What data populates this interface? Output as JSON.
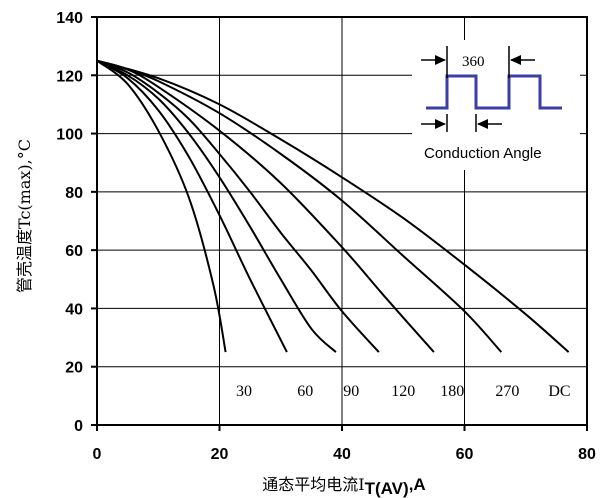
{
  "chart_data": {
    "type": "line",
    "xlabel": {
      "main": "通态平均电流I",
      "sub": "T(AV)",
      "unit": ",A"
    },
    "ylabel": "管壳温度Tc(max),°C",
    "xlim": [
      0,
      80
    ],
    "ylim": [
      0,
      140
    ],
    "x_ticks": [
      0,
      20,
      40,
      60,
      80
    ],
    "x_tick_labels": [
      "0",
      "20",
      "40",
      "60",
      "80"
    ],
    "y_ticks": [
      0,
      20,
      40,
      60,
      80,
      100,
      120,
      140
    ],
    "y_tick_labels": [
      "0",
      "20",
      "40",
      "60",
      "80",
      "100",
      "120",
      "140"
    ],
    "grid": true,
    "series": [
      {
        "name": "30",
        "points": [
          [
            0,
            125
          ],
          [
            5,
            117
          ],
          [
            10,
            101
          ],
          [
            15,
            78
          ],
          [
            19,
            48
          ],
          [
            21,
            25
          ]
        ]
      },
      {
        "name": "60",
        "points": [
          [
            0,
            125
          ],
          [
            5,
            119
          ],
          [
            10,
            108
          ],
          [
            15,
            92
          ],
          [
            20,
            72
          ],
          [
            25,
            50
          ],
          [
            31,
            25
          ]
        ]
      },
      {
        "name": "90",
        "points": [
          [
            0,
            125
          ],
          [
            5,
            120
          ],
          [
            10,
            112
          ],
          [
            15,
            100
          ],
          [
            20,
            85
          ],
          [
            25,
            68
          ],
          [
            30,
            50
          ],
          [
            35,
            33
          ],
          [
            39,
            25
          ]
        ]
      },
      {
        "name": "120",
        "points": [
          [
            0,
            125
          ],
          [
            5,
            121
          ],
          [
            10,
            114
          ],
          [
            15,
            105
          ],
          [
            20,
            93
          ],
          [
            25,
            80
          ],
          [
            30,
            66
          ],
          [
            35,
            53
          ],
          [
            40,
            39
          ],
          [
            46,
            25
          ]
        ]
      },
      {
        "name": "180",
        "points": [
          [
            0,
            125
          ],
          [
            5,
            122
          ],
          [
            10,
            116
          ],
          [
            20,
            101
          ],
          [
            30,
            83
          ],
          [
            40,
            61
          ],
          [
            47,
            44
          ],
          [
            55,
            25
          ]
        ]
      },
      {
        "name": "270",
        "points": [
          [
            0,
            125
          ],
          [
            5,
            122
          ],
          [
            10,
            118
          ],
          [
            20,
            107
          ],
          [
            30,
            93
          ],
          [
            40,
            77
          ],
          [
            50,
            58
          ],
          [
            60,
            39
          ],
          [
            66,
            25
          ]
        ]
      },
      {
        "name": "DC",
        "points": [
          [
            0,
            125
          ],
          [
            10,
            119
          ],
          [
            20,
            110
          ],
          [
            30,
            98
          ],
          [
            40,
            85
          ],
          [
            50,
            71
          ],
          [
            60,
            55
          ],
          [
            70,
            38
          ],
          [
            77,
            25
          ]
        ]
      }
    ],
    "curve_labels": [
      {
        "text": "30",
        "x": 24,
        "y": 12
      },
      {
        "text": "60",
        "x": 34,
        "y": 12
      },
      {
        "text": "90",
        "x": 41.5,
        "y": 12
      },
      {
        "text": "120",
        "x": 50,
        "y": 12
      },
      {
        "text": "180",
        "x": 58,
        "y": 12
      },
      {
        "text": "270",
        "x": 67,
        "y": 12
      },
      {
        "text": "DC",
        "x": 75.5,
        "y": 12
      }
    ],
    "inset": {
      "period_label": "360",
      "caption": "Conduction Angle",
      "waveform_color": "#3a3fa8"
    },
    "colors": {
      "curve": "#000000",
      "grid": "#000000",
      "waveform": "#3a3fa8"
    }
  }
}
